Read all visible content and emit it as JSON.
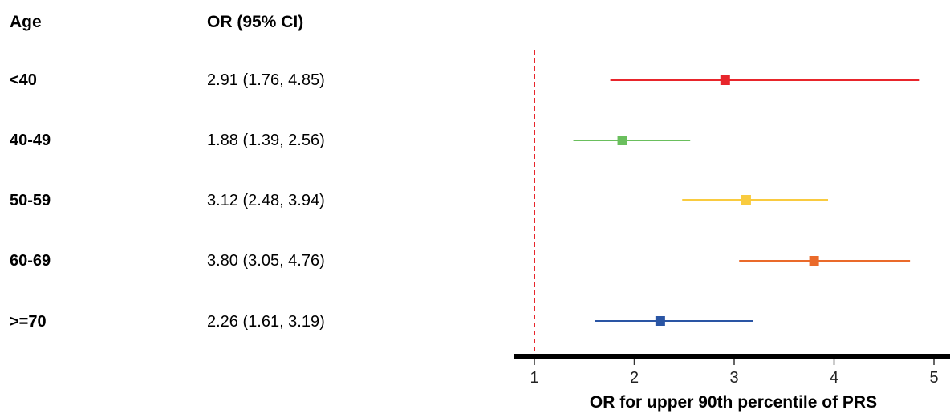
{
  "headers": {
    "age": "Age",
    "or": "OR (95% CI)"
  },
  "rows": [
    {
      "age": "<40",
      "or_text": "2.91 (1.76, 4.85)"
    },
    {
      "age": "40-49",
      "or_text": "1.88 (1.39, 2.56)"
    },
    {
      "age": "50-59",
      "or_text": "3.12 (2.48, 3.94)"
    },
    {
      "age": "60-69",
      "or_text": "3.80 (3.05, 4.76)"
    },
    {
      "age": ">=70",
      "or_text": "2.26 (1.61, 3.19)"
    }
  ],
  "chart_data": {
    "type": "forest",
    "categories": [
      "<40",
      "40-49",
      "50-59",
      "60-69",
      ">=70"
    ],
    "values": [
      2.91,
      1.88,
      3.12,
      3.8,
      2.26
    ],
    "ci_lower": [
      1.76,
      1.39,
      2.48,
      3.05,
      1.61
    ],
    "ci_upper": [
      4.85,
      2.56,
      3.94,
      4.76,
      3.19
    ],
    "colors": [
      "#e8252b",
      "#6abf5d",
      "#f9cb3f",
      "#ea6a2a",
      "#2a55a4"
    ],
    "xlabel": "OR for upper 90th percentile of PRS",
    "xticks": [
      1,
      2,
      3,
      4,
      5
    ],
    "xlim": [
      1,
      5
    ],
    "reference_line": 1,
    "reference_color": "#e8252b"
  }
}
